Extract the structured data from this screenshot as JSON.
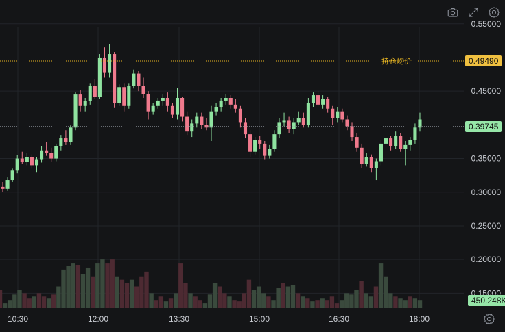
{
  "toolbar": {
    "camera_icon": "camera-icon",
    "expand_icon": "expand-icon",
    "settings_icon": "gear-icon"
  },
  "chart_data": {
    "type": "candlestick",
    "x_ticks": [
      "10:30",
      "12:00",
      "13:30",
      "15:00",
      "16:30",
      "18:00"
    ],
    "y_ticks": [
      "0.55000",
      "0.45000",
      "0.35000",
      "0.30000",
      "0.25000",
      "0.20000",
      "0.15000"
    ],
    "ylim": [
      0.128,
      0.565
    ],
    "grid": true,
    "avg_price_label": "持仓均价",
    "avg_price_value": "0.49490",
    "avg_price": 0.4949,
    "current_price_value": "0.39745",
    "current_price": 0.39745,
    "volume_value": "450.248K",
    "colors": {
      "up": "#8fe3a0",
      "down": "#f07a8d",
      "avg_line": "#e6b422",
      "avg_badge": "#f0c040",
      "price_badge": "#96e6a8",
      "vol_up": "#3a4a3d",
      "vol_down": "#4d2a32"
    },
    "candles": [
      [
        0.308,
        0.315,
        0.3,
        0.305
      ],
      [
        0.305,
        0.322,
        0.302,
        0.318
      ],
      [
        0.318,
        0.335,
        0.315,
        0.332
      ],
      [
        0.332,
        0.355,
        0.328,
        0.35
      ],
      [
        0.35,
        0.36,
        0.342,
        0.345
      ],
      [
        0.345,
        0.358,
        0.34,
        0.352
      ],
      [
        0.352,
        0.356,
        0.335,
        0.34
      ],
      [
        0.34,
        0.352,
        0.33,
        0.348
      ],
      [
        0.348,
        0.368,
        0.344,
        0.362
      ],
      [
        0.362,
        0.374,
        0.354,
        0.358
      ],
      [
        0.358,
        0.366,
        0.345,
        0.35
      ],
      [
        0.35,
        0.372,
        0.346,
        0.368
      ],
      [
        0.368,
        0.385,
        0.362,
        0.38
      ],
      [
        0.38,
        0.392,
        0.37,
        0.374
      ],
      [
        0.374,
        0.4,
        0.37,
        0.396
      ],
      [
        0.396,
        0.448,
        0.392,
        0.445
      ],
      [
        0.445,
        0.452,
        0.42,
        0.428
      ],
      [
        0.428,
        0.44,
        0.42,
        0.435
      ],
      [
        0.435,
        0.462,
        0.43,
        0.458
      ],
      [
        0.458,
        0.468,
        0.438,
        0.442
      ],
      [
        0.442,
        0.505,
        0.438,
        0.5
      ],
      [
        0.5,
        0.515,
        0.47,
        0.478
      ],
      [
        0.478,
        0.52,
        0.47,
        0.505
      ],
      [
        0.505,
        0.508,
        0.425,
        0.432
      ],
      [
        0.432,
        0.46,
        0.428,
        0.456
      ],
      [
        0.456,
        0.462,
        0.42,
        0.428
      ],
      [
        0.428,
        0.462,
        0.424,
        0.458
      ],
      [
        0.458,
        0.482,
        0.454,
        0.476
      ],
      [
        0.476,
        0.48,
        0.45,
        0.458
      ],
      [
        0.458,
        0.47,
        0.44,
        0.446
      ],
      [
        0.446,
        0.45,
        0.408,
        0.42
      ],
      [
        0.42,
        0.432,
        0.415,
        0.428
      ],
      [
        0.428,
        0.44,
        0.424,
        0.436
      ],
      [
        0.436,
        0.445,
        0.428,
        0.44
      ],
      [
        0.44,
        0.448,
        0.42,
        0.428
      ],
      [
        0.428,
        0.432,
        0.41,
        0.415
      ],
      [
        0.415,
        0.455,
        0.408,
        0.44
      ],
      [
        0.44,
        0.442,
        0.405,
        0.412
      ],
      [
        0.412,
        0.42,
        0.385,
        0.39
      ],
      [
        0.39,
        0.408,
        0.382,
        0.402
      ],
      [
        0.402,
        0.418,
        0.396,
        0.412
      ],
      [
        0.412,
        0.418,
        0.394,
        0.4
      ],
      [
        0.4,
        0.41,
        0.392,
        0.396
      ],
      [
        0.396,
        0.428,
        0.376,
        0.42
      ],
      [
        0.42,
        0.432,
        0.414,
        0.426
      ],
      [
        0.426,
        0.44,
        0.42,
        0.436
      ],
      [
        0.436,
        0.446,
        0.43,
        0.44
      ],
      [
        0.44,
        0.444,
        0.424,
        0.43
      ],
      [
        0.43,
        0.438,
        0.418,
        0.424
      ],
      [
        0.424,
        0.428,
        0.396,
        0.404
      ],
      [
        0.404,
        0.41,
        0.38,
        0.386
      ],
      [
        0.386,
        0.392,
        0.352,
        0.36
      ],
      [
        0.36,
        0.382,
        0.356,
        0.378
      ],
      [
        0.378,
        0.384,
        0.364,
        0.372
      ],
      [
        0.372,
        0.376,
        0.348,
        0.354
      ],
      [
        0.354,
        0.37,
        0.35,
        0.364
      ],
      [
        0.364,
        0.392,
        0.36,
        0.386
      ],
      [
        0.386,
        0.41,
        0.38,
        0.404
      ],
      [
        0.404,
        0.418,
        0.398,
        0.406
      ],
      [
        0.406,
        0.412,
        0.388,
        0.394
      ],
      [
        0.394,
        0.41,
        0.386,
        0.404
      ],
      [
        0.404,
        0.42,
        0.4,
        0.41
      ],
      [
        0.41,
        0.418,
        0.396,
        0.4
      ],
      [
        0.4,
        0.44,
        0.396,
        0.432
      ],
      [
        0.432,
        0.448,
        0.426,
        0.444
      ],
      [
        0.444,
        0.45,
        0.426,
        0.43
      ],
      [
        0.43,
        0.444,
        0.424,
        0.438
      ],
      [
        0.438,
        0.442,
        0.418,
        0.424
      ],
      [
        0.424,
        0.428,
        0.4,
        0.41
      ],
      [
        0.41,
        0.426,
        0.404,
        0.42
      ],
      [
        0.42,
        0.424,
        0.404,
        0.408
      ],
      [
        0.408,
        0.414,
        0.392,
        0.398
      ],
      [
        0.398,
        0.404,
        0.376,
        0.382
      ],
      [
        0.382,
        0.388,
        0.36,
        0.366
      ],
      [
        0.366,
        0.372,
        0.336,
        0.342
      ],
      [
        0.342,
        0.358,
        0.338,
        0.352
      ],
      [
        0.352,
        0.356,
        0.33,
        0.336
      ],
      [
        0.336,
        0.35,
        0.318,
        0.346
      ],
      [
        0.346,
        0.378,
        0.34,
        0.372
      ],
      [
        0.372,
        0.386,
        0.366,
        0.38
      ],
      [
        0.38,
        0.384,
        0.362,
        0.368
      ],
      [
        0.368,
        0.39,
        0.364,
        0.384
      ],
      [
        0.384,
        0.388,
        0.36,
        0.364
      ],
      [
        0.364,
        0.376,
        0.34,
        0.37
      ],
      [
        0.37,
        0.382,
        0.362,
        0.378
      ],
      [
        0.378,
        0.402,
        0.372,
        0.396
      ],
      [
        0.396,
        0.418,
        0.39,
        0.408
      ]
    ],
    "volume_max": 0.2,
    "volume_base": 0.128,
    "volumes": [
      [
        0.155,
        0
      ],
      [
        0.135,
        1
      ],
      [
        0.14,
        1
      ],
      [
        0.148,
        1
      ],
      [
        0.155,
        1
      ],
      [
        0.15,
        0
      ],
      [
        0.142,
        0
      ],
      [
        0.145,
        1
      ],
      [
        0.15,
        0
      ],
      [
        0.145,
        0
      ],
      [
        0.142,
        1
      ],
      [
        0.148,
        0
      ],
      [
        0.16,
        1
      ],
      [
        0.185,
        1
      ],
      [
        0.19,
        1
      ],
      [
        0.195,
        1
      ],
      [
        0.192,
        0
      ],
      [
        0.178,
        1
      ],
      [
        0.188,
        1
      ],
      [
        0.175,
        0
      ],
      [
        0.195,
        1
      ],
      [
        0.2,
        1
      ],
      [
        0.195,
        0
      ],
      [
        0.2,
        0
      ],
      [
        0.175,
        1
      ],
      [
        0.17,
        0
      ],
      [
        0.165,
        0
      ],
      [
        0.17,
        1
      ],
      [
        0.16,
        0
      ],
      [
        0.175,
        0
      ],
      [
        0.182,
        0
      ],
      [
        0.15,
        1
      ],
      [
        0.14,
        0
      ],
      [
        0.145,
        0
      ],
      [
        0.138,
        1
      ],
      [
        0.142,
        0
      ],
      [
        0.15,
        1
      ],
      [
        0.195,
        0
      ],
      [
        0.165,
        0
      ],
      [
        0.15,
        1
      ],
      [
        0.145,
        0
      ],
      [
        0.14,
        0
      ],
      [
        0.135,
        1
      ],
      [
        0.148,
        1
      ],
      [
        0.165,
        1
      ],
      [
        0.16,
        0
      ],
      [
        0.15,
        0
      ],
      [
        0.145,
        1
      ],
      [
        0.14,
        0
      ],
      [
        0.138,
        0
      ],
      [
        0.15,
        0
      ],
      [
        0.17,
        0
      ],
      [
        0.155,
        1
      ],
      [
        0.16,
        1
      ],
      [
        0.15,
        1
      ],
      [
        0.145,
        0
      ],
      [
        0.14,
        1
      ],
      [
        0.158,
        1
      ],
      [
        0.165,
        0
      ],
      [
        0.16,
        1
      ],
      [
        0.162,
        1
      ],
      [
        0.15,
        0
      ],
      [
        0.145,
        1
      ],
      [
        0.142,
        0
      ],
      [
        0.138,
        1
      ],
      [
        0.14,
        0
      ],
      [
        0.142,
        1
      ],
      [
        0.14,
        0
      ],
      [
        0.145,
        0
      ],
      [
        0.135,
        0
      ],
      [
        0.14,
        1
      ],
      [
        0.15,
        1
      ],
      [
        0.148,
        1
      ],
      [
        0.155,
        1
      ],
      [
        0.168,
        0
      ],
      [
        0.15,
        1
      ],
      [
        0.145,
        1
      ],
      [
        0.16,
        0
      ],
      [
        0.195,
        1
      ],
      [
        0.175,
        1
      ],
      [
        0.15,
        1
      ],
      [
        0.145,
        0
      ],
      [
        0.142,
        1
      ],
      [
        0.14,
        1
      ],
      [
        0.145,
        0
      ],
      [
        0.142,
        1
      ],
      [
        0.14,
        1
      ]
    ]
  }
}
